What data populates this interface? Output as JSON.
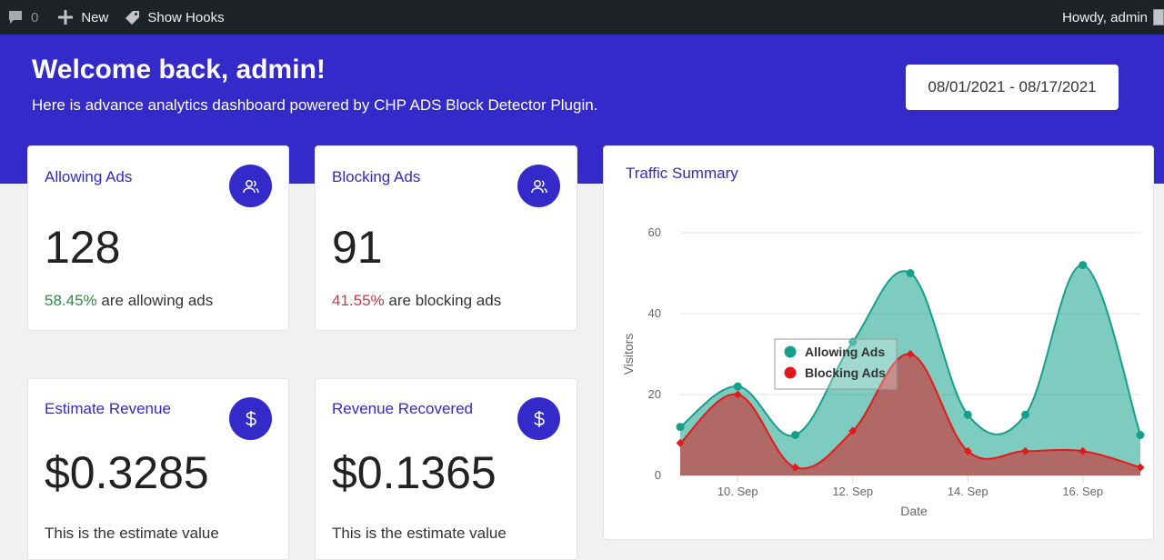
{
  "admin_bar": {
    "comments_count": "0",
    "new_label": "New",
    "show_hooks_label": "Show Hooks",
    "howdy": "Howdy, admin"
  },
  "hero": {
    "title": "Welcome back, admin!",
    "subtitle": "Here is advance analytics dashboard powered by CHP ADS Block Detector Plugin.",
    "date_range": "08/01/2021 - 08/17/2021"
  },
  "cards": [
    {
      "title": "Allowing Ads",
      "value": "128",
      "pct": "58.45%",
      "rest": " are allowing ads",
      "icon": "users-icon"
    },
    {
      "title": "Blocking Ads",
      "value": "91",
      "pct": "41.55%",
      "rest": " are blocking ads",
      "icon": "users-icon"
    },
    {
      "title": "Estimate Revenue",
      "value": "$0.3285",
      "note": "This is the estimate value",
      "icon": "dollar-icon"
    },
    {
      "title": "Revenue Recovered",
      "value": "$0.1365",
      "note": "This is the estimate value",
      "icon": "dollar-icon"
    }
  ],
  "colors": {
    "brand": "#3429c9",
    "allowing": "#14a08a",
    "blocking": "#e31a1c"
  },
  "chart_data": {
    "type": "area",
    "title": "Traffic Summary",
    "xlabel": "Date",
    "ylabel": "Visitors",
    "ylim": [
      0,
      60
    ],
    "yticks": [
      "0",
      "20",
      "40",
      "60"
    ],
    "xticks": [
      "10. Sep",
      "12. Sep",
      "14. Sep",
      "16. Sep"
    ],
    "x_tick_positions": [
      10,
      12,
      14,
      16
    ],
    "x": [
      9,
      10,
      11,
      12,
      13,
      14,
      15,
      16,
      17
    ],
    "xlim": [
      9,
      17
    ],
    "legend_position": "center",
    "series": [
      {
        "name": "Allowing Ads",
        "color": "#14a08a",
        "values": [
          12,
          22,
          10,
          33,
          50,
          15,
          15,
          52,
          10
        ]
      },
      {
        "name": "Blocking Ads",
        "color": "#e31a1c",
        "values": [
          8,
          20,
          2,
          11,
          30,
          6,
          6,
          6,
          2
        ]
      }
    ]
  }
}
